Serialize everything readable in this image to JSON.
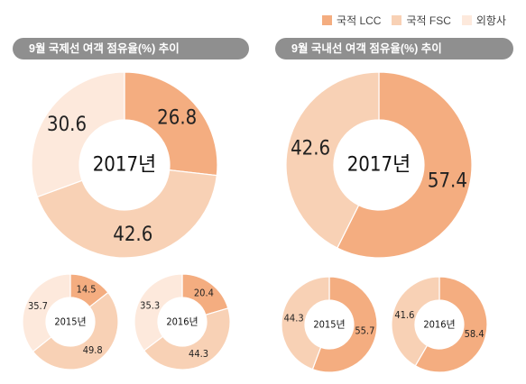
{
  "legend": [
    {
      "label": "국적 LCC",
      "color": "#f4ad80"
    },
    {
      "label": "국적 FSC",
      "color": "#f8d1b5"
    },
    {
      "label": "외항사",
      "color": "#fde9dc"
    }
  ],
  "panels": [
    {
      "title": "9월 국제선 여객 점유율(%) 추이"
    },
    {
      "title": "9월 국내선 여객 점유율(%) 추이"
    }
  ],
  "chart_data": [
    {
      "type": "pie",
      "title": "9월 국제선 여객 점유율(%) 추이",
      "center_label": "2017년",
      "categories": [
        "국적 LCC",
        "국적 FSC",
        "외항사"
      ],
      "values": [
        26.8,
        42.6,
        30.6
      ]
    },
    {
      "type": "pie",
      "title": "9월 국제선 여객 점유율(%) 추이",
      "center_label": "2015년",
      "categories": [
        "국적 LCC",
        "국적 FSC",
        "외항사"
      ],
      "values": [
        14.5,
        49.8,
        35.7
      ]
    },
    {
      "type": "pie",
      "title": "9월 국제선 여객 점유율(%) 추이",
      "center_label": "2016년",
      "categories": [
        "국적 LCC",
        "국적 FSC",
        "외항사"
      ],
      "values": [
        20.4,
        44.3,
        35.3
      ]
    },
    {
      "type": "pie",
      "title": "9월 국내선 여객 점유율(%) 추이",
      "center_label": "2017년",
      "categories": [
        "국적 LCC",
        "국적 FSC"
      ],
      "values": [
        57.4,
        42.6
      ]
    },
    {
      "type": "pie",
      "title": "9월 국내선 여객 점유율(%) 추이",
      "center_label": "2015년",
      "categories": [
        "국적 LCC",
        "국적 FSC"
      ],
      "values": [
        55.7,
        44.3
      ]
    },
    {
      "type": "pie",
      "title": "9월 국내선 여객 점유율(%) 추이",
      "center_label": "2016년",
      "categories": [
        "국적 LCC",
        "국적 FSC"
      ],
      "values": [
        58.4,
        41.6
      ]
    }
  ]
}
